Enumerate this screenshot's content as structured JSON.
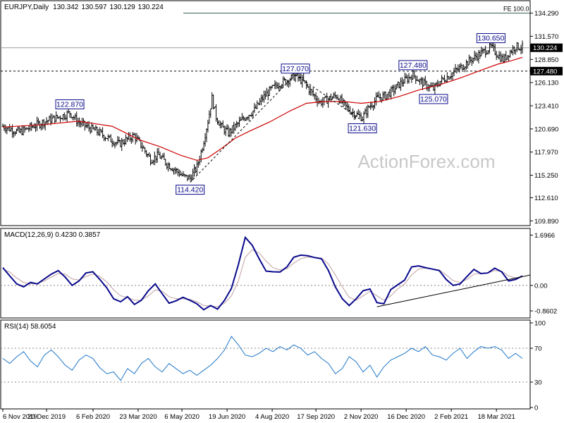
{
  "chart_data": [
    {
      "type": "ohlc",
      "title": "EURJPY,Daily",
      "ohlc": {
        "open": "130.342",
        "high": "130.597",
        "low": "130.129",
        "close": "130.224"
      },
      "ylim": [
        109.5,
        135.5
      ],
      "ticks": [
        "134.290",
        "131.570",
        "128.850",
        "126.130",
        "123.410",
        "120.690",
        "117.970",
        "115.250",
        "112.610",
        "109.890"
      ],
      "tick_values": [
        134.29,
        131.57,
        128.85,
        126.13,
        123.41,
        120.69,
        117.97,
        115.25,
        112.61,
        109.89
      ],
      "current_price": {
        "label": "130.224",
        "value": 130.224
      },
      "level": {
        "label": "127.480",
        "value": 127.48
      },
      "fe_line": {
        "label": "FE 100.0",
        "value": 134.29
      },
      "watermark": "ActionForex.com",
      "annotations": [
        {
          "text": "122.870",
          "date_index": 49,
          "value": 122.87,
          "side": "above"
        },
        {
          "text": "114.420",
          "date_index": 137,
          "value": 114.42,
          "side": "below"
        },
        {
          "text": "127.070",
          "date_index": 214,
          "value": 127.07,
          "side": "above"
        },
        {
          "text": "121.630",
          "date_index": 263,
          "value": 121.63,
          "side": "below"
        },
        {
          "text": "127.480",
          "date_index": 300,
          "value": 127.48,
          "side": "above"
        },
        {
          "text": "125.070",
          "date_index": 315,
          "value": 125.07,
          "side": "below"
        },
        {
          "text": "130.650",
          "date_index": 357,
          "value": 130.65,
          "side": "above"
        }
      ],
      "close_path": [
        [
          0,
          121.0
        ],
        [
          12,
          120.3
        ],
        [
          25,
          121.2
        ],
        [
          35,
          121.8
        ],
        [
          45,
          122.3
        ],
        [
          49,
          122.6
        ],
        [
          55,
          121.5
        ],
        [
          62,
          120.9
        ],
        [
          70,
          120.3
        ],
        [
          78,
          119.5
        ],
        [
          85,
          118.9
        ],
        [
          90,
          119.4
        ],
        [
          96,
          119.9
        ],
        [
          102,
          118.6
        ],
        [
          108,
          117.1
        ],
        [
          114,
          117.6
        ],
        [
          120,
          116.6
        ],
        [
          126,
          115.9
        ],
        [
          132,
          115.1
        ],
        [
          137,
          114.9
        ],
        [
          142,
          116.2
        ],
        [
          146,
          118.6
        ],
        [
          150,
          121.6
        ],
        [
          153,
          124.3
        ],
        [
          156,
          122.1
        ],
        [
          160,
          120.9
        ],
        [
          165,
          120.2
        ],
        [
          172,
          121.3
        ],
        [
          178,
          122.2
        ],
        [
          184,
          122.9
        ],
        [
          190,
          124.3
        ],
        [
          196,
          125.3
        ],
        [
          202,
          126.0
        ],
        [
          208,
          126.4
        ],
        [
          214,
          126.9
        ],
        [
          220,
          126.2
        ],
        [
          226,
          124.9
        ],
        [
          232,
          123.8
        ],
        [
          238,
          124.2
        ],
        [
          244,
          124.6
        ],
        [
          250,
          123.4
        ],
        [
          256,
          122.6
        ],
        [
          263,
          122.0
        ],
        [
          268,
          123.3
        ],
        [
          274,
          124.3
        ],
        [
          280,
          124.6
        ],
        [
          286,
          125.3
        ],
        [
          292,
          126.2
        ],
        [
          296,
          126.6
        ],
        [
          300,
          127.1
        ],
        [
          305,
          126.3
        ],
        [
          310,
          125.8
        ],
        [
          315,
          125.4
        ],
        [
          320,
          126.3
        ],
        [
          326,
          126.9
        ],
        [
          332,
          127.6
        ],
        [
          338,
          128.3
        ],
        [
          344,
          129.0
        ],
        [
          350,
          129.6
        ],
        [
          357,
          130.3
        ],
        [
          362,
          129.4
        ],
        [
          366,
          128.8
        ],
        [
          370,
          129.6
        ],
        [
          375,
          130.4
        ],
        [
          380,
          130.224
        ]
      ],
      "ma_path": [
        [
          0,
          120.9
        ],
        [
          30,
          121.2
        ],
        [
          55,
          121.6
        ],
        [
          80,
          121.0
        ],
        [
          100,
          119.4
        ],
        [
          115,
          118.6
        ],
        [
          130,
          117.6
        ],
        [
          142,
          117.0
        ],
        [
          150,
          117.3
        ],
        [
          160,
          118.4
        ],
        [
          170,
          119.6
        ],
        [
          180,
          120.4
        ],
        [
          195,
          121.5
        ],
        [
          210,
          122.8
        ],
        [
          222,
          123.7
        ],
        [
          235,
          123.9
        ],
        [
          250,
          123.9
        ],
        [
          262,
          123.7
        ],
        [
          275,
          123.9
        ],
        [
          290,
          124.5
        ],
        [
          305,
          125.3
        ],
        [
          320,
          125.9
        ],
        [
          335,
          126.7
        ],
        [
          350,
          127.6
        ],
        [
          362,
          128.3
        ],
        [
          372,
          128.7
        ],
        [
          380,
          129.1
        ]
      ],
      "series": [
        {
          "name": "",
          "color": "#000000",
          "kind": "ohlc-bars"
        },
        {
          "name": "",
          "color": "#cc0000",
          "kind": "moving-average"
        }
      ]
    },
    {
      "type": "line",
      "title": "MACD(12,26,9) 0.4230 0.3857",
      "ylim": [
        -1.05,
        1.85
      ],
      "ticks": [
        "1.6966",
        "0.00",
        "-0.8602"
      ],
      "tick_values": [
        1.6966,
        0.0,
        -0.8602
      ],
      "series": [
        {
          "name": "",
          "color": "#0a0a8c",
          "values": [
            0.6,
            0.32,
            0.05,
            -0.05,
            0.1,
            0.05,
            0.22,
            0.38,
            0.5,
            0.28,
            0.0,
            0.15,
            0.42,
            0.46,
            0.2,
            -0.08,
            -0.45,
            -0.55,
            -0.38,
            -0.64,
            -0.5,
            -0.18,
            0.05,
            -0.28,
            -0.6,
            -0.52,
            -0.4,
            -0.5,
            -0.62,
            -0.82,
            -0.68,
            -0.8,
            -0.5,
            -0.1,
            0.7,
            1.62,
            1.35,
            0.9,
            0.48,
            0.46,
            0.45,
            0.62,
            0.95,
            1.02,
            1.0,
            0.94,
            0.9,
            0.5,
            -0.05,
            -0.45,
            -0.68,
            -0.45,
            -0.18,
            -0.12,
            -0.58,
            -0.62,
            -0.14,
            0.02,
            0.18,
            0.62,
            0.66,
            0.6,
            0.55,
            0.5,
            0.2,
            0.0,
            0.05,
            0.3,
            0.54,
            0.4,
            0.42,
            0.58,
            0.46,
            0.15,
            0.2,
            0.32
          ]
        },
        {
          "name": "",
          "color": "#c0a0a0",
          "values": [
            0.55,
            0.45,
            0.25,
            0.1,
            0.05,
            0.07,
            0.15,
            0.28,
            0.4,
            0.38,
            0.22,
            0.18,
            0.3,
            0.38,
            0.3,
            0.12,
            -0.15,
            -0.35,
            -0.4,
            -0.5,
            -0.5,
            -0.35,
            -0.15,
            -0.2,
            -0.38,
            -0.45,
            -0.45,
            -0.47,
            -0.55,
            -0.68,
            -0.7,
            -0.72,
            -0.6,
            -0.35,
            0.15,
            0.95,
            1.2,
            1.1,
            0.82,
            0.6,
            0.52,
            0.56,
            0.75,
            0.9,
            0.95,
            0.95,
            0.92,
            0.72,
            0.35,
            -0.05,
            -0.4,
            -0.5,
            -0.35,
            -0.2,
            -0.35,
            -0.5,
            -0.35,
            -0.12,
            0.05,
            0.35,
            0.55,
            0.58,
            0.56,
            0.52,
            0.36,
            0.16,
            0.1,
            0.2,
            0.38,
            0.4,
            0.42,
            0.5,
            0.48,
            0.32,
            0.25,
            0.29
          ]
        }
      ],
      "trendline": {
        "from_index": 54,
        "from_value": -0.72,
        "to_index": 79,
        "to_value": 0.35
      }
    },
    {
      "type": "line",
      "title": "RSI(14) 58.6054",
      "ylim": [
        0,
        100
      ],
      "ticks": [
        "100",
        "70",
        "30",
        "0"
      ],
      "tick_values": [
        100,
        70,
        30,
        0
      ],
      "series": [
        {
          "name": "",
          "color": "#1f77c9",
          "values": [
            58,
            52,
            60,
            66,
            55,
            48,
            62,
            68,
            60,
            50,
            44,
            56,
            62,
            58,
            47,
            40,
            42,
            32,
            46,
            40,
            52,
            58,
            48,
            42,
            52,
            46,
            40,
            44,
            38,
            44,
            50,
            58,
            68,
            84,
            74,
            62,
            60,
            64,
            70,
            66,
            72,
            68,
            74,
            70,
            62,
            66,
            58,
            52,
            40,
            46,
            60,
            54,
            42,
            50,
            36,
            48,
            56,
            60,
            64,
            70,
            66,
            72,
            62,
            60,
            56,
            64,
            70,
            58,
            66,
            72,
            70,
            72,
            68,
            58,
            64,
            58
          ]
        }
      ]
    }
  ],
  "x_axis": {
    "labels": [
      "6 Nov 2019",
      "20 Dec 2019",
      "6 Feb 2020",
      "23 Mar 2020",
      "6 May 2020",
      "19 Jun 2020",
      "4 Aug 2020",
      "17 Sep 2020",
      "2 Nov 2020",
      "16 Dec 2020",
      "2 Feb 2021",
      "18 Mar 2021"
    ],
    "label_indexes": [
      0,
      32,
      66,
      99,
      131,
      164,
      197,
      229,
      262,
      295,
      328,
      361
    ]
  },
  "colors": {
    "price_bars": "#000000",
    "ma": "#cc0000",
    "macd": "#0a0a8c",
    "macd_signal": "#c0a0a0",
    "rsi": "#1f77c9",
    "label_border": "#0a0a8c",
    "current_price_bg": "#000000"
  }
}
